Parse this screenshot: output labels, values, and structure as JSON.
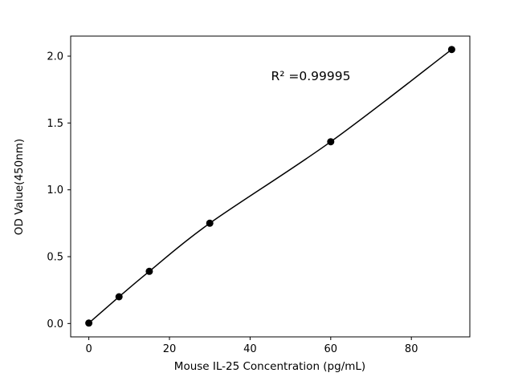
{
  "chart_data": {
    "type": "scatter",
    "title": "",
    "xlabel": "Mouse IL-25 Concentration (pg/mL)",
    "ylabel": "OD Value(450nm)",
    "x": [
      0,
      7.5,
      15,
      30,
      60,
      90
    ],
    "y": [
      0.003,
      0.2,
      0.39,
      0.75,
      1.36,
      2.05
    ],
    "xlim": [
      -4.5,
      94.5
    ],
    "ylim": [
      -0.1,
      2.15
    ],
    "xticks": [
      0,
      20,
      40,
      60,
      80
    ],
    "xtick_labels": [
      "0",
      "20",
      "40",
      "60",
      "80"
    ],
    "yticks": [
      0.0,
      0.5,
      1.0,
      1.5,
      2.0
    ],
    "ytick_labels": [
      "0.0",
      "0.5",
      "1.0",
      "1.5",
      "2.0"
    ],
    "annotation": {
      "text": "R² =0.99995",
      "x": 55,
      "y": 1.83
    },
    "grid": false,
    "legend": "none",
    "line": {
      "color": "#000000",
      "width": 1.5,
      "style": "smooth-fit"
    },
    "marker": {
      "color": "#000000",
      "radius": 4.5,
      "shape": "circle"
    },
    "axis_color": "#000000",
    "background": "#ffffff"
  }
}
